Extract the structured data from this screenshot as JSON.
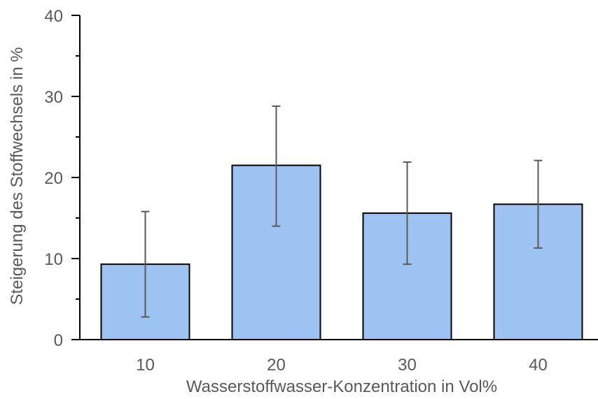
{
  "chart_data": {
    "type": "bar",
    "categories": [
      "10",
      "20",
      "30",
      "40"
    ],
    "values": [
      9.3,
      21.5,
      15.6,
      16.7
    ],
    "error_low": [
      2.8,
      14.0,
      9.3,
      11.3
    ],
    "error_high": [
      15.8,
      28.8,
      21.9,
      22.1
    ],
    "title": "",
    "xlabel": "Wasserstoffwasser-Konzentration in Vol%",
    "ylabel": "Steigerung des Stoffwechsels in %",
    "ylim": [
      0,
      40
    ],
    "yticks": [
      "0",
      "10",
      "20",
      "30",
      "40"
    ],
    "grid": false,
    "legend": "none",
    "colors": {
      "bar_fill": "#9DC3F2",
      "bar_stroke": "#000000",
      "error_bar": "#595959",
      "axis": "#000000",
      "text": "#595959"
    }
  }
}
